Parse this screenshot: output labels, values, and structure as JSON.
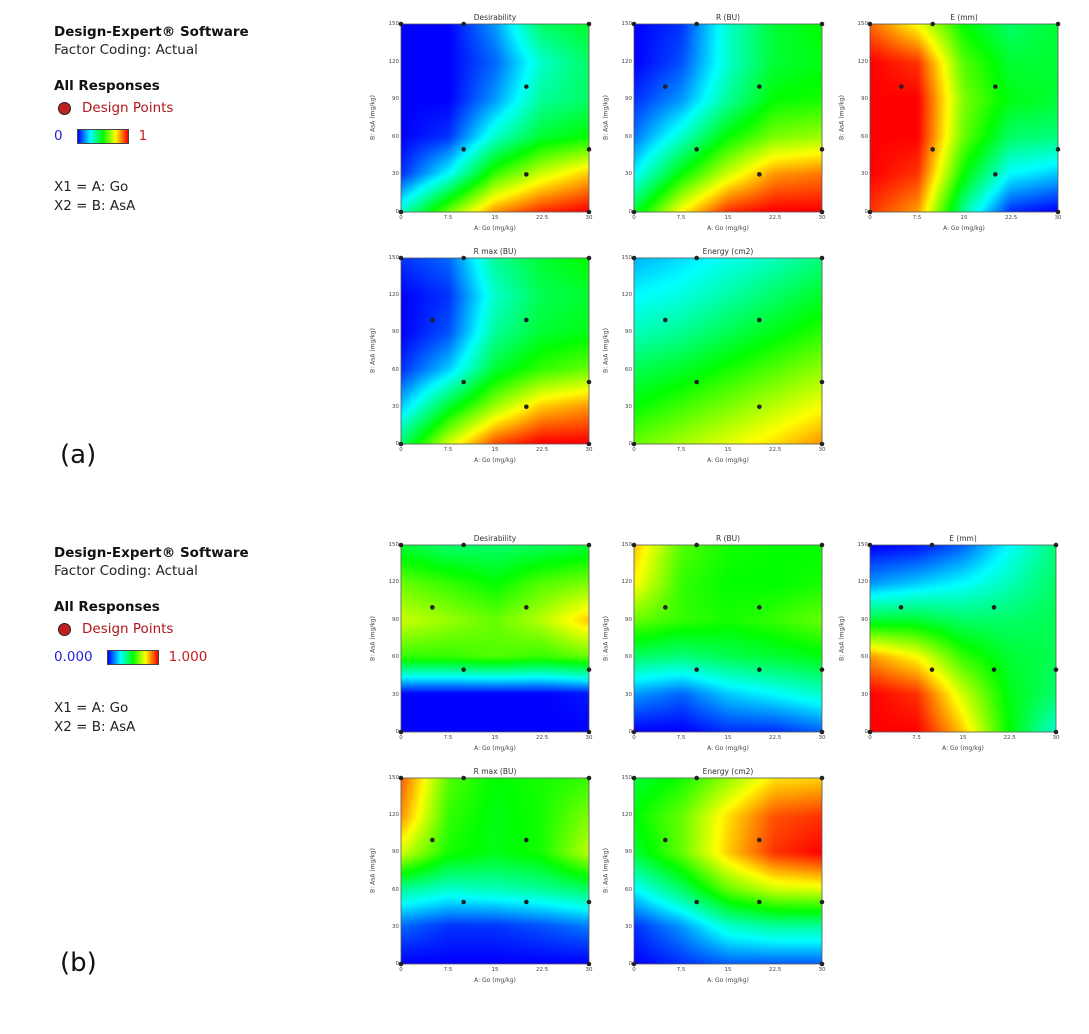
{
  "panels": [
    {
      "label": "(a)",
      "legend": {
        "software": "Design-Expert® Software",
        "factor_coding": "Factor Coding: Actual",
        "all_responses": "All Responses",
        "design_points": "Design Points",
        "scale_min": "0",
        "scale_max": "1",
        "x1": "X1 = A: Go",
        "x2": "X2 = B: AsA"
      }
    },
    {
      "label": "(b)",
      "legend": {
        "software": "Design-Expert® Software",
        "factor_coding": "Factor Coding: Actual",
        "all_responses": "All Responses",
        "design_points": "Design Points",
        "scale_min": "0.000",
        "scale_max": "1.000",
        "x1": "X1 = A: Go",
        "x2": "X2 = B: AsA"
      }
    }
  ],
  "colors": {
    "design_point": "#c0201f",
    "scale_low": "#0000ff",
    "scale_high": "#ff0000",
    "contour_line": "#222222"
  },
  "chart_data": [
    {
      "panel": "a",
      "type": "heatmap",
      "title": "Desirability",
      "xlabel": "A: Go (mg/kg)",
      "ylabel": "B: AsA (mg/kg)",
      "xlim": [
        0,
        30
      ],
      "ylim": [
        0,
        150
      ],
      "xticks": [
        "0",
        "7.5",
        "15",
        "22.5",
        "30"
      ],
      "yticks": [
        "0",
        "30",
        "60",
        "90",
        "120",
        "150"
      ],
      "design_points": [
        [
          0,
          0
        ],
        [
          0,
          150
        ],
        [
          10,
          50
        ],
        [
          10,
          150
        ],
        [
          20,
          30
        ],
        [
          20,
          100
        ],
        [
          30,
          0
        ],
        [
          30,
          50
        ],
        [
          30,
          150
        ]
      ],
      "z": [
        [
          0.3,
          0.05,
          0.0,
          0.0,
          0.0,
          0.0
        ],
        [
          0.6,
          0.25,
          0.05,
          0.0,
          0.0,
          0.0
        ],
        [
          0.85,
          0.55,
          0.3,
          0.15,
          0.1,
          0.15
        ],
        [
          0.95,
          0.7,
          0.45,
          0.35,
          0.3,
          0.4
        ],
        [
          1.0,
          0.8,
          0.5,
          0.4,
          0.4,
          0.45
        ]
      ]
    },
    {
      "panel": "a",
      "type": "heatmap",
      "title": "R (BU)",
      "xlabel": "A: Go (mg/kg)",
      "ylabel": "B: AsA (mg/kg)",
      "xlim": [
        0,
        30
      ],
      "ylim": [
        0,
        150
      ],
      "xticks": [
        "0",
        "7.5",
        "15",
        "22.5",
        "30"
      ],
      "yticks": [
        "0",
        "30",
        "60",
        "90",
        "120",
        "150"
      ],
      "design_points": [
        [
          0,
          0
        ],
        [
          0,
          150
        ],
        [
          5,
          100
        ],
        [
          10,
          50
        ],
        [
          10,
          150
        ],
        [
          20,
          30
        ],
        [
          20,
          100
        ],
        [
          30,
          0
        ],
        [
          30,
          50
        ],
        [
          30,
          150
        ]
      ],
      "z": [
        [
          0.45,
          0.25,
          0.12,
          0.05,
          0.0,
          0.0
        ],
        [
          0.75,
          0.5,
          0.3,
          0.15,
          0.08,
          0.05
        ],
        [
          0.95,
          0.7,
          0.5,
          0.35,
          0.3,
          0.3
        ],
        [
          1.0,
          0.85,
          0.62,
          0.5,
          0.45,
          0.45
        ],
        [
          1.0,
          0.88,
          0.65,
          0.52,
          0.48,
          0.5
        ]
      ]
    },
    {
      "panel": "a",
      "type": "heatmap",
      "title": "E (mm)",
      "xlabel": "A: Go (mg/kg)",
      "ylabel": "B: AsA (mg/kg)",
      "xlim": [
        0,
        30
      ],
      "ylim": [
        0,
        150
      ],
      "xticks": [
        "0",
        "7.5",
        "15",
        "22.5",
        "30"
      ],
      "yticks": [
        "0",
        "30",
        "60",
        "90",
        "120",
        "150"
      ],
      "design_points": [
        [
          0,
          0
        ],
        [
          0,
          150
        ],
        [
          5,
          100
        ],
        [
          10,
          50
        ],
        [
          10,
          150
        ],
        [
          20,
          30
        ],
        [
          20,
          100
        ],
        [
          30,
          0
        ],
        [
          30,
          50
        ],
        [
          30,
          150
        ]
      ],
      "z": [
        [
          0.95,
          1.0,
          1.0,
          1.0,
          1.0,
          0.9
        ],
        [
          0.85,
          0.95,
          1.0,
          1.0,
          0.95,
          0.75
        ],
        [
          0.35,
          0.5,
          0.6,
          0.62,
          0.58,
          0.5
        ],
        [
          0.05,
          0.25,
          0.4,
          0.48,
          0.45,
          0.4
        ],
        [
          0.0,
          0.2,
          0.38,
          0.45,
          0.45,
          0.45
        ]
      ]
    },
    {
      "panel": "a",
      "type": "heatmap",
      "title": "R max (BU)",
      "xlabel": "A: Go (mg/kg)",
      "ylabel": "B: AsA (mg/kg)",
      "xlim": [
        0,
        30
      ],
      "ylim": [
        0,
        150
      ],
      "xticks": [
        "0",
        "7.5",
        "15",
        "22.5",
        "30"
      ],
      "yticks": [
        "0",
        "30",
        "60",
        "90",
        "120",
        "150"
      ],
      "design_points": [
        [
          0,
          0
        ],
        [
          0,
          150
        ],
        [
          5,
          100
        ],
        [
          10,
          50
        ],
        [
          10,
          150
        ],
        [
          20,
          30
        ],
        [
          20,
          100
        ],
        [
          30,
          0
        ],
        [
          30,
          50
        ],
        [
          30,
          150
        ]
      ],
      "z": [
        [
          0.4,
          0.2,
          0.05,
          0.0,
          0.0,
          0.05
        ],
        [
          0.7,
          0.45,
          0.2,
          0.08,
          0.05,
          0.1
        ],
        [
          0.92,
          0.65,
          0.45,
          0.35,
          0.3,
          0.35
        ],
        [
          1.0,
          0.8,
          0.55,
          0.45,
          0.42,
          0.45
        ],
        [
          1.0,
          0.85,
          0.6,
          0.48,
          0.45,
          0.5
        ]
      ]
    },
    {
      "panel": "a",
      "type": "heatmap",
      "title": "Energy (cm2)",
      "xlabel": "A: Go (mg/kg)",
      "ylabel": "B: AsA (mg/kg)",
      "xlim": [
        0,
        30
      ],
      "ylim": [
        0,
        150
      ],
      "xticks": [
        "0",
        "7.5",
        "15",
        "22.5",
        "30"
      ],
      "yticks": [
        "0",
        "30",
        "60",
        "90",
        "120",
        "150"
      ],
      "design_points": [
        [
          0,
          0
        ],
        [
          0,
          150
        ],
        [
          5,
          100
        ],
        [
          10,
          50
        ],
        [
          10,
          150
        ],
        [
          20,
          30
        ],
        [
          20,
          100
        ],
        [
          30,
          0
        ],
        [
          30,
          50
        ],
        [
          30,
          150
        ]
      ],
      "z": [
        [
          0.6,
          0.5,
          0.42,
          0.32,
          0.25,
          0.18
        ],
        [
          0.66,
          0.56,
          0.46,
          0.36,
          0.28,
          0.22
        ],
        [
          0.72,
          0.62,
          0.52,
          0.42,
          0.34,
          0.27
        ],
        [
          0.78,
          0.68,
          0.58,
          0.48,
          0.4,
          0.32
        ],
        [
          0.85,
          0.74,
          0.64,
          0.54,
          0.46,
          0.38
        ]
      ]
    },
    {
      "panel": "b",
      "type": "heatmap",
      "title": "Desirability",
      "xlabel": "A: Go (mg/kg)",
      "ylabel": "B: AsA (mg/kg)",
      "xlim": [
        0,
        30
      ],
      "ylim": [
        0,
        150
      ],
      "xticks": [
        "0",
        "7.5",
        "15",
        "22.5",
        "30"
      ],
      "yticks": [
        "0",
        "30",
        "60",
        "90",
        "120",
        "150"
      ],
      "design_points": [
        [
          0,
          0
        ],
        [
          0,
          150
        ],
        [
          5,
          100
        ],
        [
          10,
          50
        ],
        [
          10,
          150
        ],
        [
          20,
          100
        ],
        [
          30,
          0
        ],
        [
          30,
          50
        ],
        [
          30,
          150
        ]
      ],
      "z": [
        [
          0.0,
          0.0,
          0.55,
          0.7,
          0.6,
          0.45
        ],
        [
          0.0,
          0.0,
          0.55,
          0.65,
          0.55,
          0.4
        ],
        [
          0.0,
          0.0,
          0.58,
          0.6,
          0.5,
          0.4
        ],
        [
          0.0,
          0.0,
          0.55,
          0.68,
          0.58,
          0.42
        ],
        [
          0.0,
          0.02,
          0.6,
          0.8,
          0.62,
          0.45
        ]
      ]
    },
    {
      "panel": "b",
      "type": "heatmap",
      "title": "R (BU)",
      "xlabel": "A: Go (mg/kg)",
      "ylabel": "B: AsA (mg/kg)",
      "xlim": [
        0,
        30
      ],
      "ylim": [
        0,
        150
      ],
      "xticks": [
        "0",
        "7.5",
        "15",
        "22.5",
        "30"
      ],
      "yticks": [
        "0",
        "30",
        "60",
        "90",
        "120",
        "150"
      ],
      "design_points": [
        [
          0,
          0
        ],
        [
          0,
          150
        ],
        [
          5,
          100
        ],
        [
          10,
          50
        ],
        [
          10,
          150
        ],
        [
          20,
          50
        ],
        [
          20,
          100
        ],
        [
          30,
          0
        ],
        [
          30,
          50
        ],
        [
          30,
          150
        ]
      ],
      "z": [
        [
          0.0,
          0.15,
          0.4,
          0.6,
          0.75,
          0.8
        ],
        [
          0.0,
          0.1,
          0.38,
          0.55,
          0.55,
          0.58
        ],
        [
          0.05,
          0.2,
          0.42,
          0.52,
          0.5,
          0.52
        ],
        [
          0.05,
          0.25,
          0.45,
          0.55,
          0.5,
          0.5
        ],
        [
          0.1,
          0.3,
          0.48,
          0.6,
          0.52,
          0.5
        ]
      ]
    },
    {
      "panel": "b",
      "type": "heatmap",
      "title": "E (mm)",
      "xlabel": "A: Go (mg/kg)",
      "ylabel": "B: AsA (mg/kg)",
      "xlim": [
        0,
        30
      ],
      "ylim": [
        0,
        150
      ],
      "xticks": [
        "0",
        "7.5",
        "15",
        "22.5",
        "30"
      ],
      "yticks": [
        "0",
        "30",
        "60",
        "90",
        "120",
        "150"
      ],
      "design_points": [
        [
          0,
          0
        ],
        [
          0,
          150
        ],
        [
          5,
          100
        ],
        [
          10,
          50
        ],
        [
          10,
          150
        ],
        [
          20,
          50
        ],
        [
          20,
          100
        ],
        [
          30,
          0
        ],
        [
          30,
          50
        ],
        [
          30,
          150
        ]
      ],
      "z": [
        [
          1.0,
          1.0,
          0.85,
          0.45,
          0.15,
          0.0
        ],
        [
          1.0,
          0.95,
          0.75,
          0.45,
          0.2,
          0.02
        ],
        [
          0.8,
          0.7,
          0.55,
          0.4,
          0.25,
          0.1
        ],
        [
          0.5,
          0.48,
          0.45,
          0.4,
          0.32,
          0.25
        ],
        [
          0.3,
          0.4,
          0.42,
          0.42,
          0.4,
          0.38
        ]
      ]
    },
    {
      "panel": "b",
      "type": "heatmap",
      "title": "R max (BU)",
      "xlabel": "A: Go (mg/kg)",
      "ylabel": "B: AsA (mg/kg)",
      "xlim": [
        0,
        30
      ],
      "ylim": [
        0,
        150
      ],
      "xticks": [
        "0",
        "7.5",
        "15",
        "22.5",
        "30"
      ],
      "yticks": [
        "0",
        "30",
        "60",
        "90",
        "120",
        "150"
      ],
      "design_points": [
        [
          0,
          0
        ],
        [
          0,
          150
        ],
        [
          5,
          100
        ],
        [
          10,
          50
        ],
        [
          10,
          150
        ],
        [
          20,
          50
        ],
        [
          20,
          100
        ],
        [
          30,
          0
        ],
        [
          30,
          50
        ],
        [
          30,
          150
        ]
      ],
      "z": [
        [
          0.0,
          0.1,
          0.35,
          0.7,
          0.85,
          0.9
        ],
        [
          0.0,
          0.05,
          0.3,
          0.52,
          0.55,
          0.58
        ],
        [
          0.0,
          0.05,
          0.32,
          0.48,
          0.48,
          0.5
        ],
        [
          0.0,
          0.08,
          0.35,
          0.52,
          0.52,
          0.52
        ],
        [
          0.0,
          0.12,
          0.4,
          0.68,
          0.62,
          0.55
        ]
      ]
    },
    {
      "panel": "b",
      "type": "heatmap",
      "title": "Energy (cm2)",
      "xlabel": "A: Go (mg/kg)",
      "ylabel": "B: AsA (mg/kg)",
      "xlim": [
        0,
        30
      ],
      "ylim": [
        0,
        150
      ],
      "xticks": [
        "0",
        "7.5",
        "15",
        "22.5",
        "30"
      ],
      "yticks": [
        "0",
        "30",
        "60",
        "90",
        "120",
        "150"
      ],
      "design_points": [
        [
          0,
          0
        ],
        [
          0,
          150
        ],
        [
          5,
          100
        ],
        [
          10,
          50
        ],
        [
          10,
          150
        ],
        [
          20,
          50
        ],
        [
          20,
          100
        ],
        [
          30,
          0
        ],
        [
          30,
          50
        ],
        [
          30,
          150
        ]
      ],
      "z": [
        [
          0.0,
          0.05,
          0.25,
          0.45,
          0.5,
          0.45
        ],
        [
          0.05,
          0.15,
          0.4,
          0.6,
          0.6,
          0.52
        ],
        [
          0.1,
          0.3,
          0.6,
          0.8,
          0.78,
          0.65
        ],
        [
          0.1,
          0.35,
          0.7,
          0.95,
          0.92,
          0.78
        ],
        [
          0.1,
          0.35,
          0.72,
          1.0,
          0.95,
          0.8
        ]
      ]
    }
  ]
}
